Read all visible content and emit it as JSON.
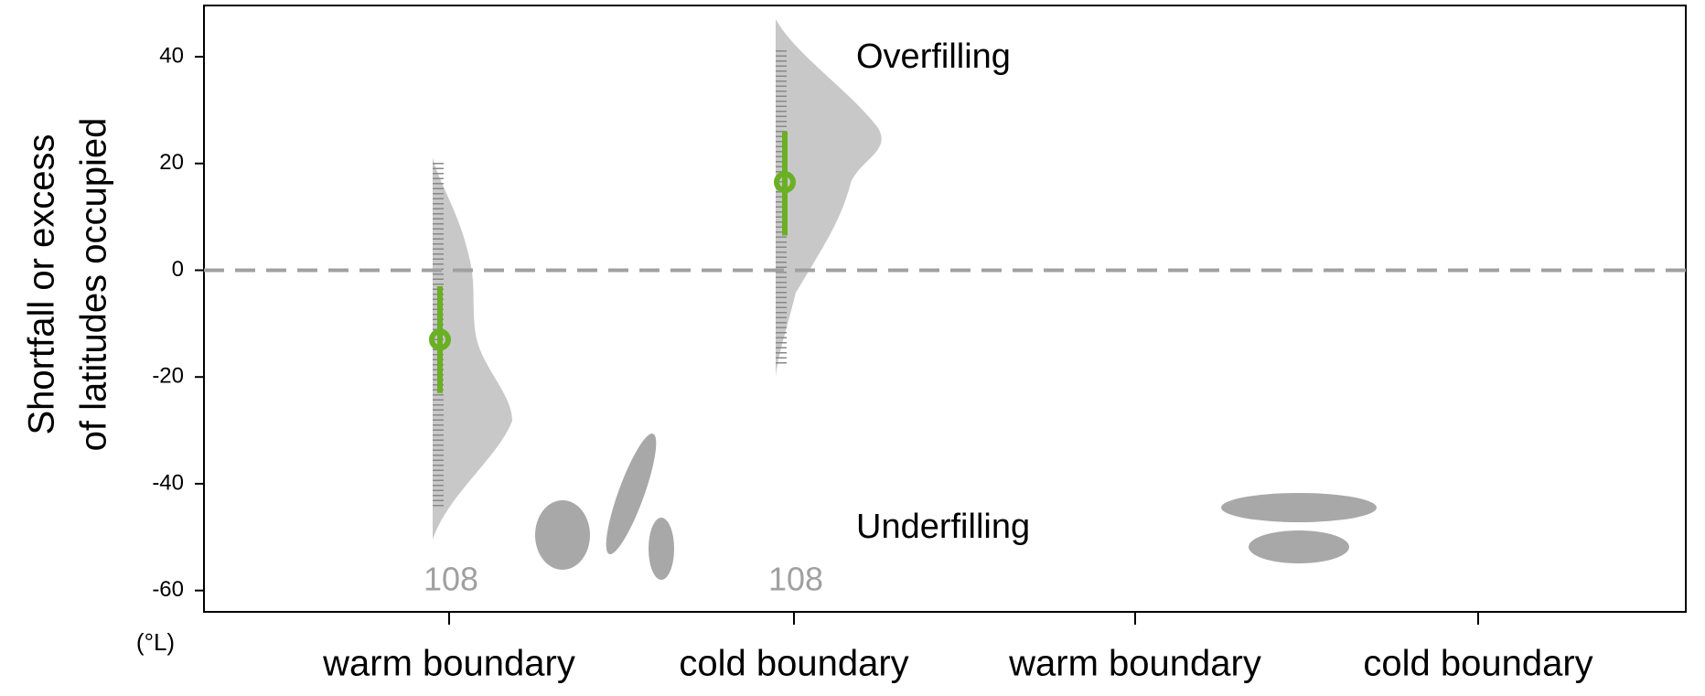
{
  "chart_data": {
    "type": "pointrange",
    "y_label": [
      "Shortfall or excess",
      "of latitudes occupied"
    ],
    "y_unit": "(°L)",
    "categories": [
      "warm boundary",
      "cold boundary",
      "warm boundary",
      "cold boundary"
    ],
    "values": [
      -13,
      16.5,
      null,
      null
    ],
    "lower": [
      -23,
      6.5,
      null,
      null
    ],
    "upper": [
      -3,
      26,
      null,
      null
    ],
    "n": [
      108,
      108,
      null,
      null
    ],
    "color": "#6ab023",
    "hline": 0,
    "annotations": [
      "Overfilling",
      "Underfilling"
    ],
    "ylim": [
      -64,
      49.6
    ],
    "yticks": [
      -60,
      -40,
      -20,
      0,
      20,
      40
    ]
  }
}
